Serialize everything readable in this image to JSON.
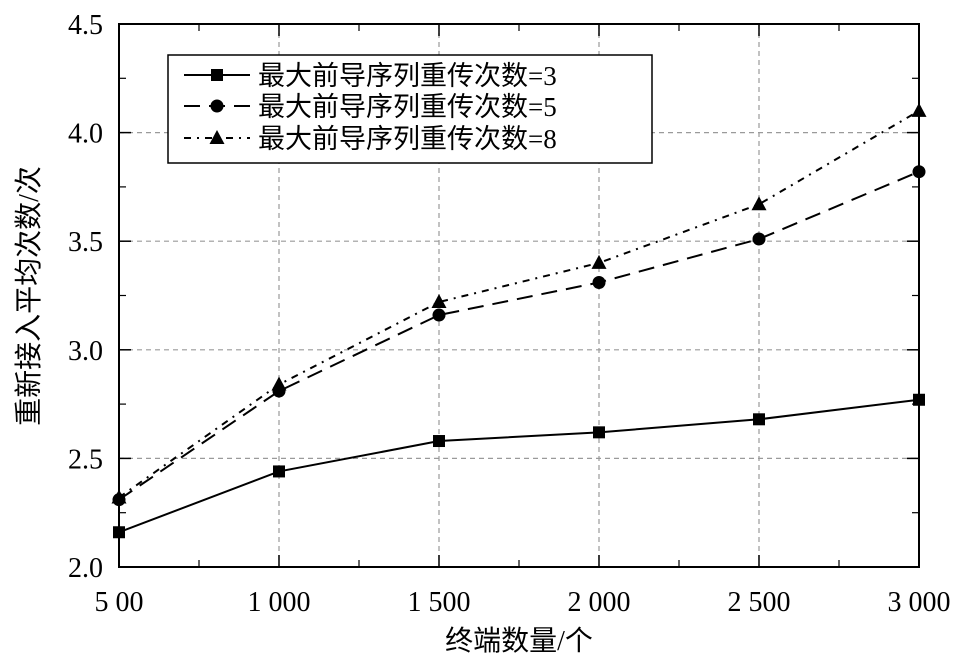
{
  "chart_data": {
    "type": "line",
    "xlabel": "终端数量/个",
    "ylabel": "重新接入平均次数/次",
    "x": [
      500,
      1000,
      1500,
      2000,
      2500,
      3000
    ],
    "x_ticks": [
      500,
      1000,
      1500,
      2000,
      2500,
      3000
    ],
    "x_tick_labels": [
      "5 00",
      "1 000",
      "1 500",
      "2 000",
      "2 500",
      "3 000"
    ],
    "y_ticks": [
      2.0,
      2.5,
      3.0,
      3.5,
      4.0,
      4.5
    ],
    "y_tick_labels": [
      "2.0",
      "2.5",
      "3.0",
      "3.5",
      "4.0",
      "4.5"
    ],
    "xlim": [
      500,
      3000
    ],
    "ylim": [
      2.0,
      4.5
    ],
    "grid": true,
    "legend_position": "top-left",
    "color": "#000000",
    "grid_color": "#9a9a9a",
    "series": [
      {
        "name": "最大前导序列重传次数=3",
        "marker": "square",
        "line_style": "solid",
        "values": [
          2.16,
          2.44,
          2.58,
          2.62,
          2.68,
          2.77
        ]
      },
      {
        "name": "最大前导序列重传次数=5",
        "marker": "circle",
        "line_style": "dashed",
        "values": [
          2.31,
          2.81,
          3.16,
          3.31,
          3.51,
          3.82
        ]
      },
      {
        "name": "最大前导序列重传次数=8",
        "marker": "triangle",
        "line_style": "dash-dot",
        "values": [
          2.32,
          2.84,
          3.22,
          3.4,
          3.67,
          4.1
        ]
      }
    ]
  }
}
